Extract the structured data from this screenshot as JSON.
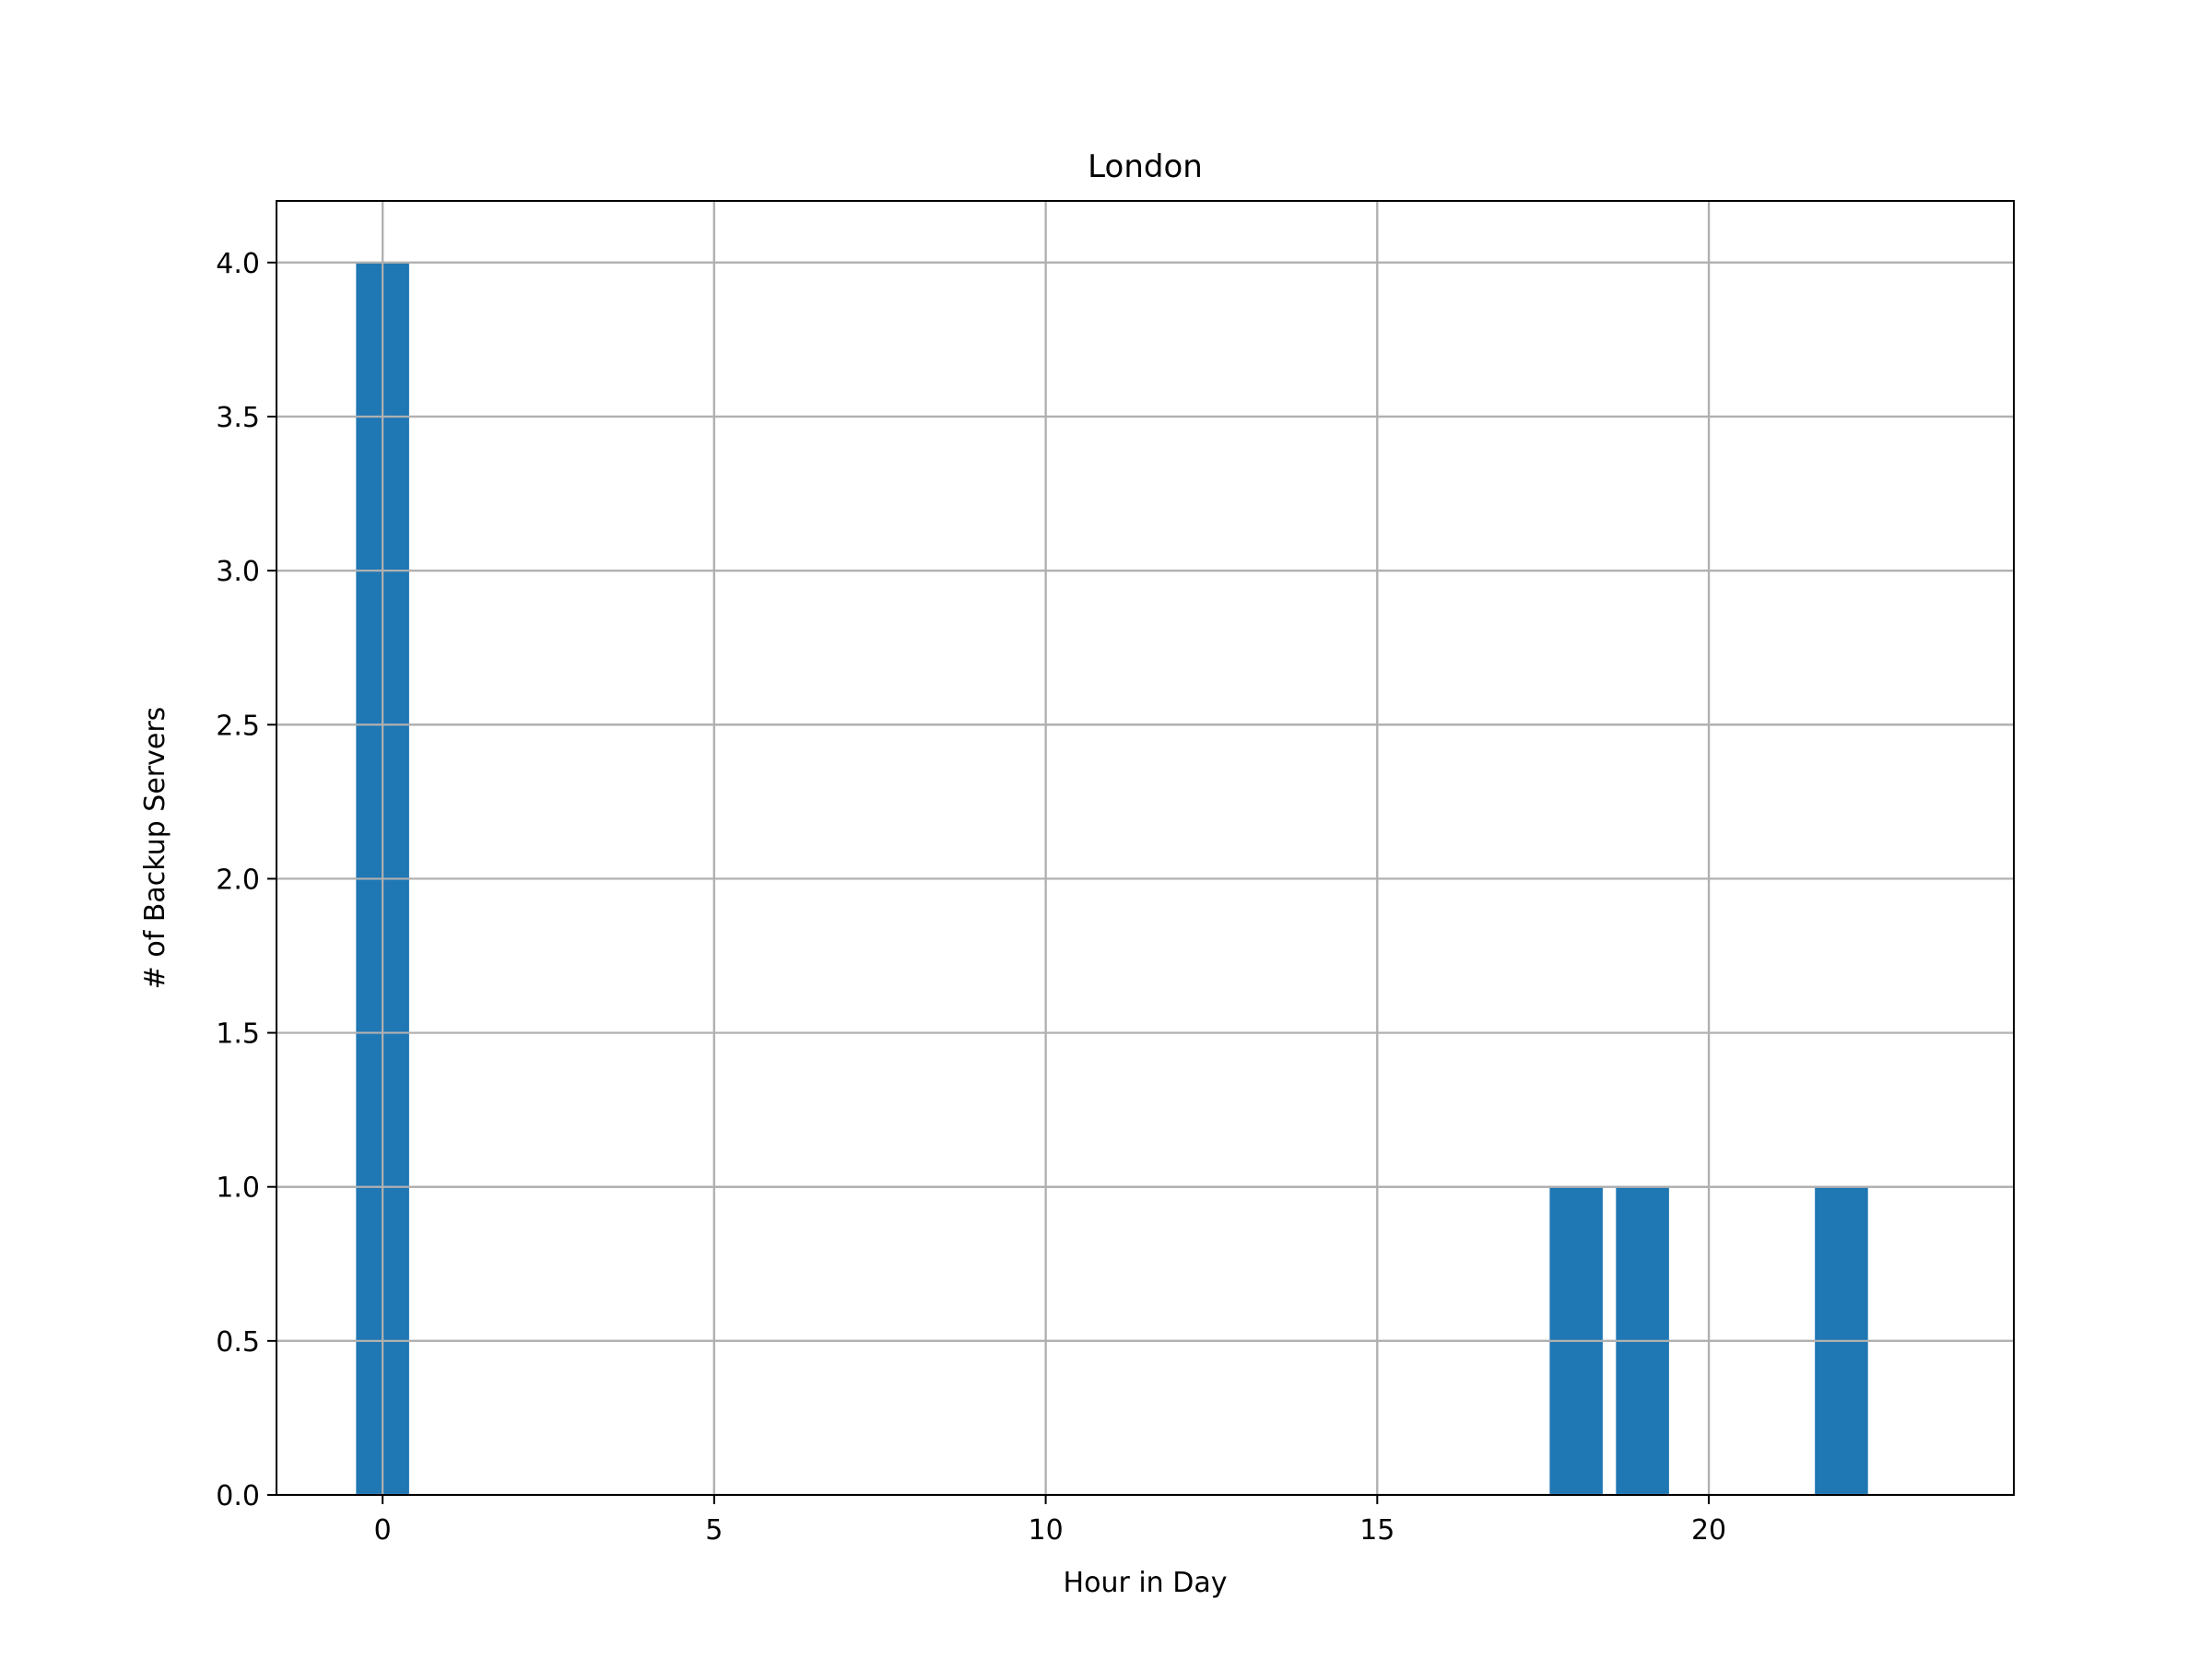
{
  "chart_data": {
    "type": "bar",
    "title": "London",
    "xlabel": "Hour in Day",
    "ylabel": "# of Backup Servers",
    "x": [
      0,
      18,
      19,
      22
    ],
    "values": [
      4,
      1,
      1,
      1
    ],
    "bar_width": 0.8,
    "xlim": [
      -1.6,
      24.6
    ],
    "ylim": [
      0,
      4.2
    ],
    "xticks": [
      0,
      5,
      10,
      15,
      20
    ],
    "xtick_labels": [
      "0",
      "5",
      "10",
      "15",
      "20"
    ],
    "yticks": [
      0,
      0.5,
      1,
      1.5,
      2,
      2.5,
      3,
      3.5,
      4
    ],
    "ytick_labels": [
      "0.0",
      "0.5",
      "1.0",
      "1.5",
      "2.0",
      "2.5",
      "3.0",
      "3.5",
      "4.0"
    ],
    "grid": true,
    "legend": "none",
    "bar_color": "#1f77b4"
  }
}
